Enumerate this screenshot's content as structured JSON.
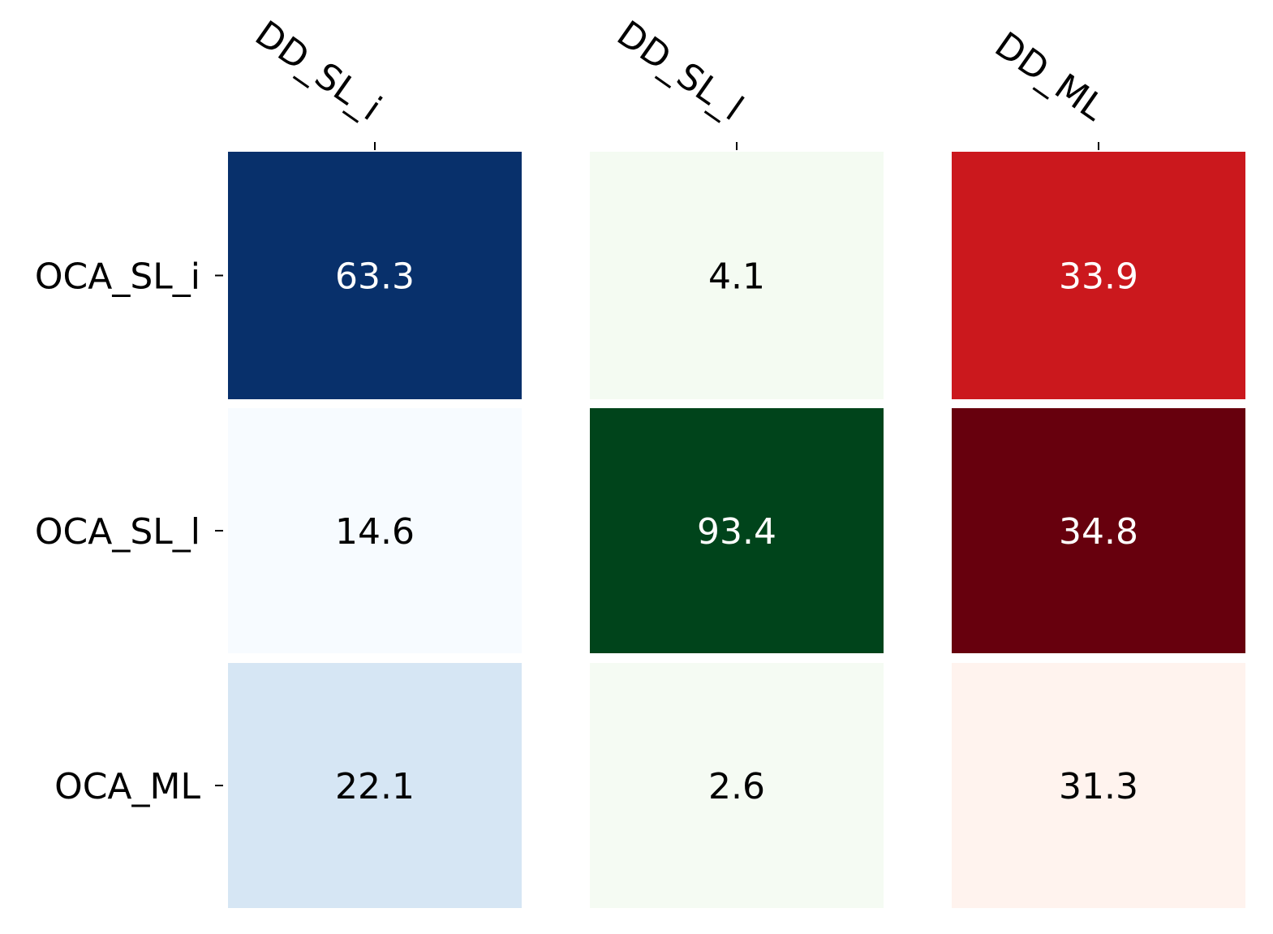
{
  "chart_data": {
    "type": "heatmap",
    "title": "",
    "xlabel": "",
    "ylabel": "",
    "columns": [
      "DD_SL_i",
      "DD_SL_l",
      "DD_ML"
    ],
    "rows": [
      "OCA_SL_i",
      "OCA_SL_l",
      "OCA_ML"
    ],
    "values": [
      [
        63.3,
        4.1,
        33.9
      ],
      [
        14.6,
        93.4,
        34.8
      ],
      [
        22.1,
        2.6,
        31.3
      ]
    ],
    "value_labels": [
      [
        "63.3",
        "4.1",
        "33.9"
      ],
      [
        "14.6",
        "93.4",
        "34.8"
      ],
      [
        "22.1",
        "2.6",
        "31.3"
      ]
    ],
    "colormaps": [
      "Blues",
      "Greens",
      "Reds"
    ],
    "cell_colors": [
      [
        "#08306b",
        "#f4fbf2",
        "#cb181d"
      ],
      [
        "#f7fbff",
        "#00441b",
        "#67000d"
      ],
      [
        "#d6e6f4",
        "#f5fbf3",
        "#fff3ee"
      ]
    ],
    "text_colors": [
      [
        "#ffffff",
        "#000000",
        "#ffffff"
      ],
      [
        "#000000",
        "#ffffff",
        "#ffffff"
      ],
      [
        "#000000",
        "#000000",
        "#000000"
      ]
    ],
    "x_ticks_position": "top",
    "grid": false,
    "legend": "none"
  }
}
